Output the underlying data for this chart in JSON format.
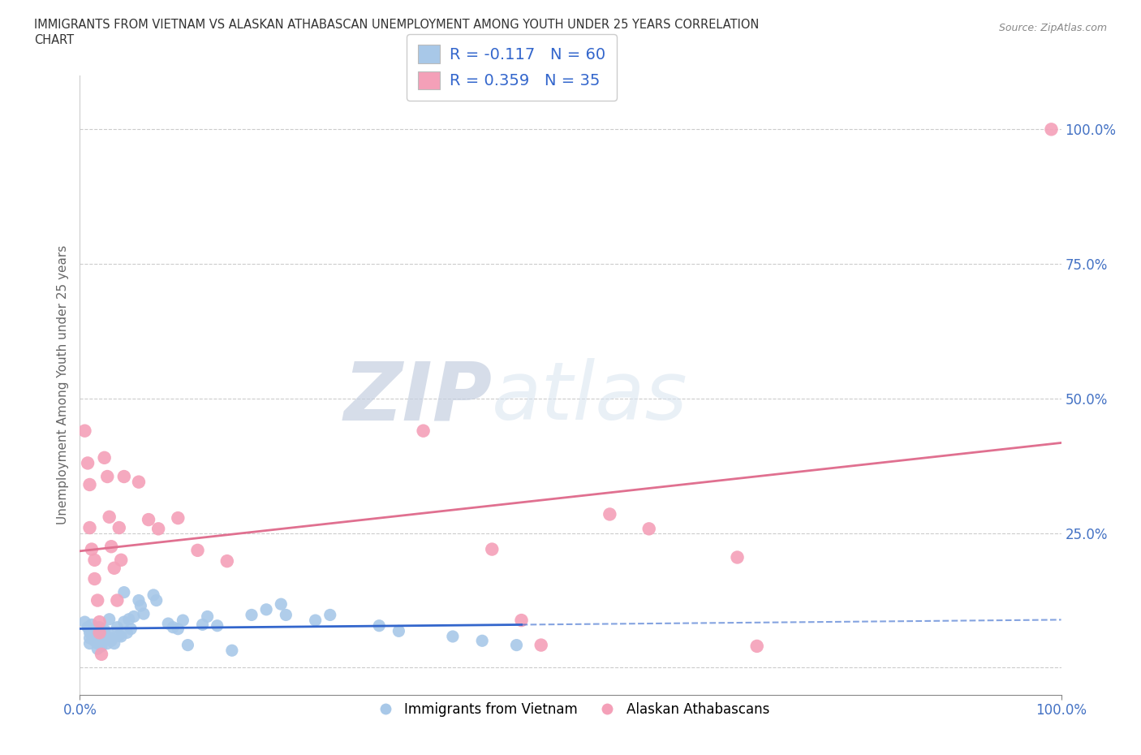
{
  "title_line1": "IMMIGRANTS FROM VIETNAM VS ALASKAN ATHABASCAN UNEMPLOYMENT AMONG YOUTH UNDER 25 YEARS CORRELATION",
  "title_line2": "CHART",
  "source": "Source: ZipAtlas.com",
  "ylabel": "Unemployment Among Youth under 25 years",
  "xlim": [
    0.0,
    1.0
  ],
  "ylim": [
    -0.05,
    1.1
  ],
  "yticks": [
    0.0,
    0.25,
    0.5,
    0.75,
    1.0
  ],
  "ytick_labels": [
    "",
    "25.0%",
    "50.0%",
    "75.0%",
    "100.0%"
  ],
  "xticks": [
    0.0,
    1.0
  ],
  "xtick_labels": [
    "0.0%",
    "100.0%"
  ],
  "R_blue": -0.117,
  "N_blue": 60,
  "R_pink": 0.359,
  "N_pink": 35,
  "color_blue": "#a8c8e8",
  "color_pink": "#f4a0b8",
  "scatter_blue": [
    [
      0.005,
      0.085
    ],
    [
      0.008,
      0.075
    ],
    [
      0.01,
      0.065
    ],
    [
      0.01,
      0.055
    ],
    [
      0.01,
      0.045
    ],
    [
      0.012,
      0.08
    ],
    [
      0.015,
      0.07
    ],
    [
      0.015,
      0.06
    ],
    [
      0.015,
      0.05
    ],
    [
      0.018,
      0.045
    ],
    [
      0.018,
      0.035
    ],
    [
      0.02,
      0.075
    ],
    [
      0.02,
      0.065
    ],
    [
      0.02,
      0.055
    ],
    [
      0.022,
      0.05
    ],
    [
      0.022,
      0.04
    ],
    [
      0.025,
      0.07
    ],
    [
      0.025,
      0.065
    ],
    [
      0.025,
      0.06
    ],
    [
      0.028,
      0.055
    ],
    [
      0.028,
      0.045
    ],
    [
      0.03,
      0.09
    ],
    [
      0.03,
      0.06
    ],
    [
      0.032,
      0.055
    ],
    [
      0.032,
      0.05
    ],
    [
      0.035,
      0.045
    ],
    [
      0.038,
      0.075
    ],
    [
      0.04,
      0.06
    ],
    [
      0.042,
      0.058
    ],
    [
      0.045,
      0.14
    ],
    [
      0.045,
      0.085
    ],
    [
      0.048,
      0.065
    ],
    [
      0.05,
      0.09
    ],
    [
      0.052,
      0.072
    ],
    [
      0.055,
      0.095
    ],
    [
      0.06,
      0.125
    ],
    [
      0.062,
      0.115
    ],
    [
      0.065,
      0.1
    ],
    [
      0.075,
      0.135
    ],
    [
      0.078,
      0.125
    ],
    [
      0.09,
      0.082
    ],
    [
      0.095,
      0.075
    ],
    [
      0.1,
      0.072
    ],
    [
      0.105,
      0.088
    ],
    [
      0.11,
      0.042
    ],
    [
      0.125,
      0.08
    ],
    [
      0.13,
      0.095
    ],
    [
      0.14,
      0.078
    ],
    [
      0.155,
      0.032
    ],
    [
      0.175,
      0.098
    ],
    [
      0.19,
      0.108
    ],
    [
      0.205,
      0.118
    ],
    [
      0.21,
      0.098
    ],
    [
      0.24,
      0.088
    ],
    [
      0.255,
      0.098
    ],
    [
      0.305,
      0.078
    ],
    [
      0.325,
      0.068
    ],
    [
      0.38,
      0.058
    ],
    [
      0.41,
      0.05
    ],
    [
      0.445,
      0.042
    ]
  ],
  "scatter_pink": [
    [
      0.005,
      0.44
    ],
    [
      0.008,
      0.38
    ],
    [
      0.01,
      0.34
    ],
    [
      0.01,
      0.26
    ],
    [
      0.012,
      0.22
    ],
    [
      0.015,
      0.2
    ],
    [
      0.015,
      0.165
    ],
    [
      0.018,
      0.125
    ],
    [
      0.02,
      0.085
    ],
    [
      0.02,
      0.065
    ],
    [
      0.022,
      0.025
    ],
    [
      0.025,
      0.39
    ],
    [
      0.028,
      0.355
    ],
    [
      0.03,
      0.28
    ],
    [
      0.032,
      0.225
    ],
    [
      0.035,
      0.185
    ],
    [
      0.038,
      0.125
    ],
    [
      0.04,
      0.26
    ],
    [
      0.042,
      0.2
    ],
    [
      0.045,
      0.355
    ],
    [
      0.06,
      0.345
    ],
    [
      0.07,
      0.275
    ],
    [
      0.08,
      0.258
    ],
    [
      0.1,
      0.278
    ],
    [
      0.12,
      0.218
    ],
    [
      0.15,
      0.198
    ],
    [
      0.35,
      0.44
    ],
    [
      0.42,
      0.22
    ],
    [
      0.45,
      0.088
    ],
    [
      0.47,
      0.042
    ],
    [
      0.54,
      0.285
    ],
    [
      0.58,
      0.258
    ],
    [
      0.67,
      0.205
    ],
    [
      0.69,
      0.04
    ],
    [
      0.99,
      1.0
    ]
  ],
  "watermark_zip": "ZIP",
  "watermark_atlas": "atlas",
  "grid_color": "#cccccc",
  "grid_style": "--",
  "background": "#ffffff",
  "title_color": "#333333",
  "axis_label_color": "#666666",
  "tick_color": "#4472c4",
  "blue_line_color": "#3366cc",
  "pink_line_color": "#e07090",
  "blue_line_solid_end": 0.45,
  "legend_label_blue": "R = -0.117   N = 60",
  "legend_label_pink": "R = 0.359   N = 35",
  "bottom_legend_blue": "Immigrants from Vietnam",
  "bottom_legend_pink": "Alaskan Athabascans"
}
